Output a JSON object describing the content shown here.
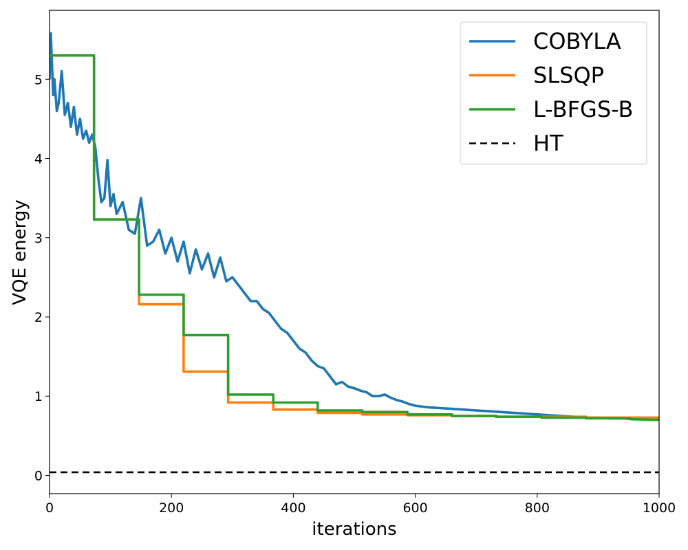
{
  "chart_data": {
    "type": "line",
    "title": "",
    "xlabel": "iterations",
    "ylabel": "VQE energy",
    "xlim": [
      0,
      1000
    ],
    "ylim": [
      -0.23,
      5.87
    ],
    "xticks": [
      "0",
      "200",
      "400",
      "600",
      "800",
      "1000"
    ],
    "yticks": [
      "0",
      "1",
      "2",
      "3",
      "4",
      "5"
    ],
    "grid": false,
    "legend_position": "top-right",
    "series": [
      {
        "name": "COBYLA",
        "color": "#1f77b4",
        "style": "solid",
        "x": [
          0,
          2,
          4,
          6,
          8,
          12,
          15,
          20,
          25,
          30,
          35,
          40,
          45,
          50,
          55,
          60,
          65,
          70,
          75,
          80,
          85,
          90,
          95,
          100,
          105,
          110,
          120,
          130,
          140,
          150,
          160,
          170,
          180,
          190,
          200,
          210,
          220,
          230,
          240,
          250,
          260,
          270,
          280,
          290,
          300,
          310,
          320,
          330,
          340,
          350,
          360,
          370,
          380,
          390,
          400,
          410,
          420,
          430,
          440,
          450,
          460,
          470,
          480,
          490,
          500,
          510,
          520,
          530,
          540,
          550,
          560,
          570,
          580,
          590,
          600,
          620,
          640,
          660,
          680,
          700,
          720,
          740,
          760,
          780,
          800,
          820,
          840,
          860,
          880,
          900,
          920,
          940,
          960,
          980,
          1000
        ],
        "y": [
          5.0,
          5.58,
          5.2,
          4.8,
          5.0,
          4.6,
          4.7,
          5.1,
          4.55,
          4.7,
          4.4,
          4.65,
          4.3,
          4.5,
          4.25,
          4.35,
          4.2,
          4.3,
          4.15,
          3.75,
          3.45,
          3.5,
          3.98,
          3.4,
          3.55,
          3.3,
          3.45,
          3.1,
          3.05,
          3.5,
          2.9,
          2.95,
          3.1,
          2.8,
          3.0,
          2.7,
          2.95,
          2.55,
          2.85,
          2.6,
          2.8,
          2.5,
          2.75,
          2.45,
          2.5,
          2.4,
          2.3,
          2.2,
          2.2,
          2.1,
          2.05,
          1.95,
          1.85,
          1.8,
          1.7,
          1.6,
          1.55,
          1.45,
          1.38,
          1.35,
          1.25,
          1.15,
          1.18,
          1.12,
          1.1,
          1.07,
          1.05,
          1.0,
          1.0,
          1.02,
          0.98,
          0.95,
          0.93,
          0.9,
          0.88,
          0.86,
          0.85,
          0.84,
          0.83,
          0.82,
          0.81,
          0.8,
          0.79,
          0.78,
          0.77,
          0.76,
          0.75,
          0.74,
          0.73,
          0.73,
          0.72,
          0.72,
          0.71,
          0.71,
          0.7
        ]
      },
      {
        "name": "SLSQP",
        "color": "#ff7f0e",
        "style": "solid",
        "x": [
          0,
          73,
          73,
          147,
          147,
          220,
          220,
          293,
          293,
          367,
          367,
          440,
          440,
          513,
          513,
          587,
          587,
          660,
          660,
          733,
          733,
          807,
          807,
          880,
          880,
          953,
          953,
          1000
        ],
        "y": [
          5.3,
          5.3,
          3.23,
          3.23,
          2.16,
          2.16,
          1.31,
          1.31,
          0.92,
          0.92,
          0.83,
          0.83,
          0.79,
          0.79,
          0.77,
          0.77,
          0.76,
          0.76,
          0.75,
          0.75,
          0.74,
          0.74,
          0.74,
          0.74,
          0.73,
          0.73,
          0.73,
          0.73
        ]
      },
      {
        "name": "L-BFGS-B",
        "color": "#2ca02c",
        "style": "solid",
        "x": [
          0,
          73,
          73,
          147,
          147,
          220,
          220,
          293,
          293,
          367,
          367,
          440,
          440,
          513,
          513,
          587,
          587,
          660,
          660,
          733,
          733,
          807,
          807,
          880,
          880,
          953,
          953,
          1000
        ],
        "y": [
          5.3,
          5.3,
          3.23,
          3.23,
          2.28,
          2.28,
          1.77,
          1.77,
          1.02,
          1.02,
          0.92,
          0.92,
          0.82,
          0.82,
          0.8,
          0.8,
          0.77,
          0.77,
          0.75,
          0.75,
          0.74,
          0.74,
          0.73,
          0.73,
          0.72,
          0.72,
          0.71,
          0.7
        ]
      },
      {
        "name": "HT",
        "color": "#000000",
        "style": "dashed",
        "x": [
          0,
          1000
        ],
        "y": [
          0.04,
          0.04
        ]
      }
    ]
  }
}
